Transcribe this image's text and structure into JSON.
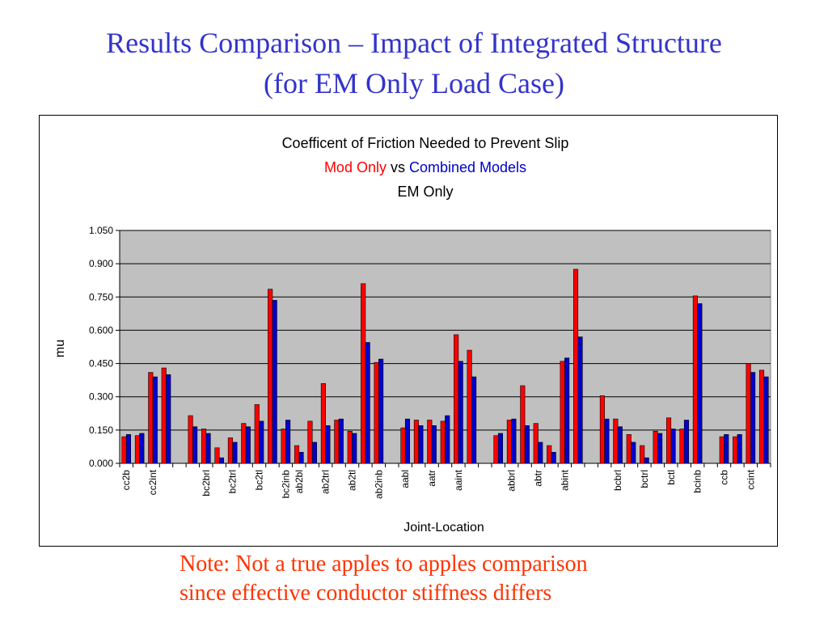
{
  "slide": {
    "title_line1": "Results Comparison – Impact of Integrated Structure",
    "title_line2": "(for EM Only Load Case)",
    "note_line1": "Note: Not a true apples to apples comparison",
    "note_line2": "since effective conductor stiffness differs"
  },
  "colors": {
    "title": "#3333cc",
    "note": "#ff3300",
    "mod_only": "#ff0000",
    "combined": "#0000cc",
    "plot_bg": "#c0c0c0"
  },
  "chart_data": {
    "type": "bar",
    "title_line1": "Coefficent of Friction Needed to Prevent Slip",
    "title_mod": "Mod Only",
    "title_vs": " vs ",
    "title_comb": "Combined Models",
    "title_line3": "EM Only",
    "xlabel": "Joint-Location",
    "ylabel": "mu",
    "ylim": [
      0,
      1.05
    ],
    "yticks": [
      "0.000",
      "0.150",
      "0.300",
      "0.450",
      "0.600",
      "0.750",
      "0.900",
      "1.050"
    ],
    "grid": true,
    "legend": "none",
    "series_names": [
      "Mod Only",
      "Combined Models"
    ],
    "categories": [
      {
        "label": "cc2b",
        "mod": 0.12,
        "comb": 0.13
      },
      {
        "label": "",
        "mod": 0.125,
        "comb": 0.135
      },
      {
        "label": "cc2int",
        "mod": 0.41,
        "comb": 0.39
      },
      {
        "label": "",
        "mod": 0.43,
        "comb": 0.4
      },
      {
        "label": "",
        "mod": null,
        "comb": null
      },
      {
        "label": "",
        "mod": 0.215,
        "comb": 0.165
      },
      {
        "label": "bc2brl",
        "mod": 0.155,
        "comb": 0.135
      },
      {
        "label": "",
        "mod": 0.07,
        "comb": 0.025
      },
      {
        "label": "bc2trl",
        "mod": 0.115,
        "comb": 0.095
      },
      {
        "label": "",
        "mod": 0.18,
        "comb": 0.165
      },
      {
        "label": "bc2tl",
        "mod": 0.265,
        "comb": 0.19
      },
      {
        "label": "",
        "mod": 0.785,
        "comb": 0.735
      },
      {
        "label": "bc2inb",
        "mod": 0.155,
        "comb": 0.195
      },
      {
        "label": "ab2bl",
        "mod": 0.08,
        "comb": 0.05
      },
      {
        "label": "",
        "mod": 0.19,
        "comb": 0.095
      },
      {
        "label": "ab2trl",
        "mod": 0.36,
        "comb": 0.17
      },
      {
        "label": "",
        "mod": 0.195,
        "comb": 0.2
      },
      {
        "label": "ab2tl",
        "mod": 0.145,
        "comb": 0.135
      },
      {
        "label": "",
        "mod": 0.81,
        "comb": 0.545
      },
      {
        "label": "ab2inb",
        "mod": 0.455,
        "comb": 0.47
      },
      {
        "label": "",
        "mod": null,
        "comb": null
      },
      {
        "label": "aabl",
        "mod": 0.16,
        "comb": 0.2
      },
      {
        "label": "",
        "mod": 0.195,
        "comb": 0.17
      },
      {
        "label": "aatr",
        "mod": 0.195,
        "comb": 0.17
      },
      {
        "label": "",
        "mod": 0.19,
        "comb": 0.215
      },
      {
        "label": "aaint",
        "mod": 0.58,
        "comb": 0.46
      },
      {
        "label": "",
        "mod": 0.51,
        "comb": 0.39
      },
      {
        "label": "",
        "mod": null,
        "comb": null
      },
      {
        "label": "",
        "mod": 0.125,
        "comb": 0.135
      },
      {
        "label": "abbrl",
        "mod": 0.195,
        "comb": 0.2
      },
      {
        "label": "",
        "mod": 0.35,
        "comb": 0.17
      },
      {
        "label": "abtr",
        "mod": 0.18,
        "comb": 0.095
      },
      {
        "label": "",
        "mod": 0.08,
        "comb": 0.05
      },
      {
        "label": "abint",
        "mod": 0.46,
        "comb": 0.475
      },
      {
        "label": "",
        "mod": 0.875,
        "comb": 0.57
      },
      {
        "label": "",
        "mod": null,
        "comb": null
      },
      {
        "label": "",
        "mod": 0.305,
        "comb": 0.2
      },
      {
        "label": "bcbrl",
        "mod": 0.2,
        "comb": 0.165
      },
      {
        "label": "",
        "mod": 0.13,
        "comb": 0.095
      },
      {
        "label": "bctrl",
        "mod": 0.08,
        "comb": 0.025
      },
      {
        "label": "",
        "mod": 0.145,
        "comb": 0.135
      },
      {
        "label": "bctl",
        "mod": 0.205,
        "comb": 0.155
      },
      {
        "label": "",
        "mod": 0.155,
        "comb": 0.195
      },
      {
        "label": "bcinb",
        "mod": 0.755,
        "comb": 0.72
      },
      {
        "label": "",
        "mod": null,
        "comb": null
      },
      {
        "label": "ccb",
        "mod": 0.12,
        "comb": 0.13
      },
      {
        "label": "",
        "mod": 0.12,
        "comb": 0.13
      },
      {
        "label": "ccint",
        "mod": 0.45,
        "comb": 0.41
      },
      {
        "label": "",
        "mod": 0.42,
        "comb": 0.39
      }
    ]
  }
}
